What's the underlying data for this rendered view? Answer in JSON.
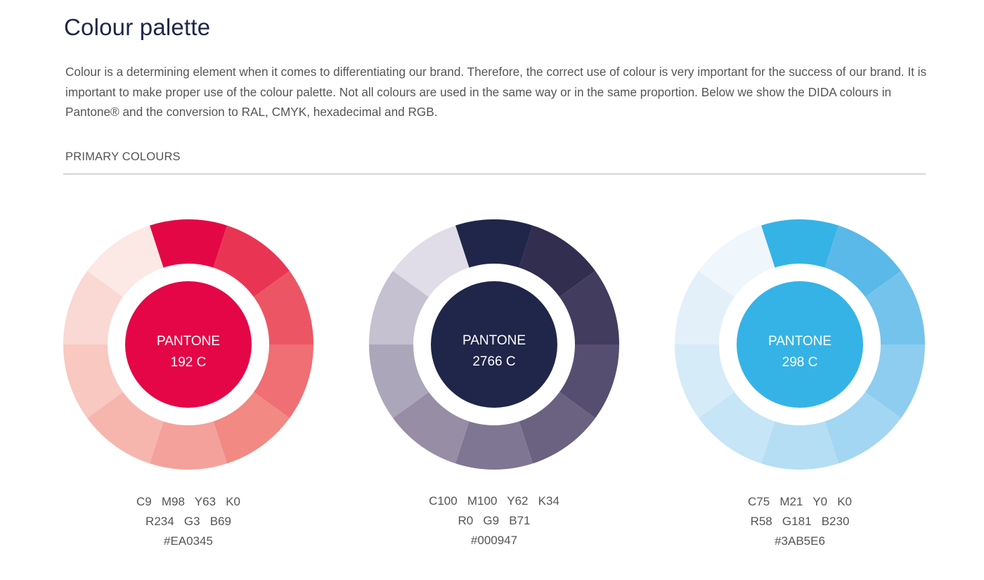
{
  "page": {
    "title": "Colour palette",
    "intro": "Colour is a determining element when it comes to differentiating our brand. Therefore, the correct use of colour is very important for the success of our brand. It is important to make proper use of the colour palette. Not all colours are used in the same way or in the same proportion. Below we show the DIDA colours in Pantone® and the conversion to RAL, CMYK, hexadecimal and RGB.",
    "section_label": "PRIMARY COLOURS"
  },
  "swatches": [
    {
      "pantone_label": "PANTONE",
      "pantone_code": "192 C",
      "cmyk": "C9   M98   Y63   K0",
      "rgb": "R234   G3   B69",
      "hex": "#EA0345",
      "center_color": "#e40646",
      "segment_colors": [
        "#e30845",
        "#e93553",
        "#ec5664",
        "#ef6f74",
        "#f28983",
        "#f4a19b",
        "#f6b6ae",
        "#f8c8c1",
        "#fad8d3",
        "#fce8e5"
      ]
    },
    {
      "pantone_label": "PANTONE",
      "pantone_code": "2766 C",
      "cmyk": "C100   M100   Y62   K34",
      "rgb": "R0   G9   B71",
      "hex": "#000947",
      "center_color": "#20264a",
      "segment_colors": [
        "#20264a",
        "#312e50",
        "#423c5f",
        "#564e70",
        "#6b6282",
        "#7f7693",
        "#978ea6",
        "#aca6ba",
        "#c5c1d1",
        "#e0dde8"
      ]
    },
    {
      "pantone_label": "PANTONE",
      "pantone_code": "298 C",
      "cmyk": "C75   M21   Y0   K0",
      "rgb": "R58   G181   B230",
      "hex": "#3AB5E6",
      "center_color": "#35b3e6",
      "segment_colors": [
        "#35b3e6",
        "#5ab9e8",
        "#74c3ec",
        "#8ecdef",
        "#a3d6f2",
        "#b5def4",
        "#c6e5f6",
        "#d5ebf8",
        "#e3f0fa",
        "#eff6fc"
      ]
    }
  ]
}
